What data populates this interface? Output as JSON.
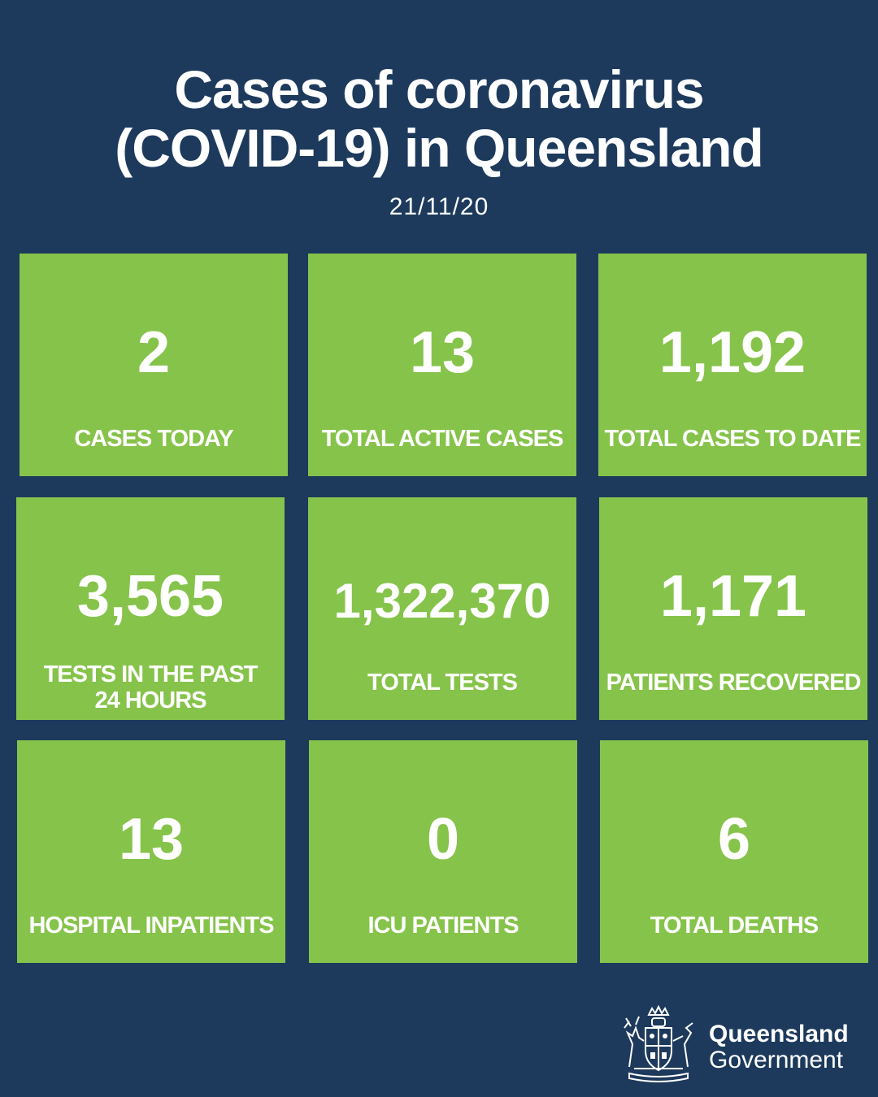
{
  "header": {
    "title_line1": "Cases of coronavirus",
    "title_line2": "(COVID-19) in Queensland",
    "date": "21/11/20"
  },
  "tiles": [
    {
      "value": "2",
      "label": "CASES TODAY"
    },
    {
      "value": "13",
      "label": "TOTAL ACTIVE CASES"
    },
    {
      "value": "1,192",
      "label": "TOTAL CASES TO DATE"
    },
    {
      "value": "3,565",
      "label": "TESTS IN THE PAST 24 HOURS"
    },
    {
      "value": "1,322,370",
      "label": "TOTAL TESTS"
    },
    {
      "value": "1,171",
      "label": "PATIENTS RECOVERED"
    },
    {
      "value": "13",
      "label": "HOSPITAL INPATIENTS"
    },
    {
      "value": "0",
      "label": "ICU PATIENTS"
    },
    {
      "value": "6",
      "label": "TOTAL DEATHS"
    }
  ],
  "logo": {
    "line1": "Queensland",
    "line2": "Government",
    "crest_icon": "queensland-coat-of-arms-icon"
  },
  "colors": {
    "background": "#1d3a5c",
    "tile": "#86c34a",
    "text": "#ffffff"
  }
}
